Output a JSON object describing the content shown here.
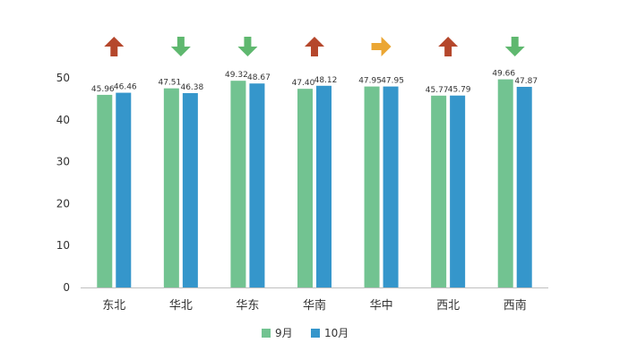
{
  "chart_data": {
    "type": "bar",
    "title": "",
    "xlabel": "",
    "ylabel": "",
    "ylim": [
      0,
      50
    ],
    "yticks": [
      0,
      10,
      20,
      30,
      40,
      50
    ],
    "categories": [
      "东北",
      "华北",
      "华东",
      "华南",
      "华中",
      "西北",
      "西南"
    ],
    "series": [
      {
        "name": "9月",
        "color": "#72C391",
        "values": [
          45.96,
          47.51,
          49.32,
          47.4,
          47.95,
          45.77,
          49.66
        ]
      },
      {
        "name": "10月",
        "color": "#3596CB",
        "values": [
          46.46,
          46.38,
          48.67,
          48.12,
          47.95,
          45.79,
          47.87
        ]
      }
    ],
    "trend_indicators": [
      "up",
      "down",
      "down",
      "up",
      "flat",
      "up",
      "down"
    ],
    "indicator_colors": {
      "up": "#B5472C",
      "down": "#5FB86F",
      "flat": "#EBA633"
    },
    "legend_position": "bottom-center"
  }
}
